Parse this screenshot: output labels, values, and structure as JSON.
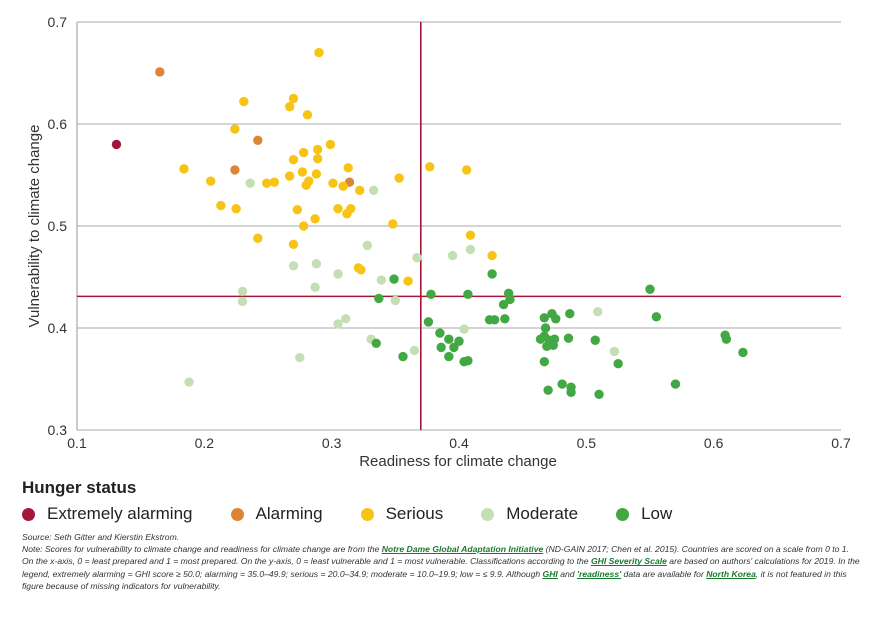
{
  "colors": {
    "extremely_alarming": "#a3183a",
    "alarming": "#dc8534",
    "serious": "#f7c416",
    "moderate": "#c4dfb3",
    "low": "#41a843",
    "reference_line": "#a3183a",
    "grid": "#aaaaaa"
  },
  "chart_data": {
    "type": "scatter",
    "xlabel": "Readiness for climate change",
    "ylabel": "Vulnerability to climate change",
    "xlim": [
      0.1,
      0.7
    ],
    "ylim": [
      0.3,
      0.7
    ],
    "x_ticks": [
      "0.1",
      "0.2",
      "0.3",
      "0.4",
      "0.5",
      "0.6",
      "0.7"
    ],
    "y_ticks": [
      "0.3",
      "0.4",
      "0.5",
      "0.6",
      "0.7"
    ],
    "grid": "horizontal",
    "reference_lines": {
      "x": 0.37,
      "y": 0.431
    },
    "series": [
      {
        "name": "Extremely alarming",
        "color_key": "extremely_alarming",
        "points": [
          [
            0.131,
            0.58
          ]
        ]
      },
      {
        "name": "Alarming",
        "color_key": "alarming",
        "points": [
          [
            0.165,
            0.651
          ],
          [
            0.242,
            0.584
          ],
          [
            0.224,
            0.555
          ],
          [
            0.314,
            0.543
          ]
        ]
      },
      {
        "name": "Serious",
        "color_key": "serious",
        "points": [
          [
            0.29,
            0.67
          ],
          [
            0.231,
            0.622
          ],
          [
            0.27,
            0.625
          ],
          [
            0.267,
            0.617
          ],
          [
            0.281,
            0.609
          ],
          [
            0.224,
            0.595
          ],
          [
            0.289,
            0.575
          ],
          [
            0.299,
            0.58
          ],
          [
            0.278,
            0.572
          ],
          [
            0.289,
            0.566
          ],
          [
            0.27,
            0.565
          ],
          [
            0.184,
            0.556
          ],
          [
            0.313,
            0.557
          ],
          [
            0.301,
            0.542
          ],
          [
            0.277,
            0.553
          ],
          [
            0.267,
            0.549
          ],
          [
            0.288,
            0.551
          ],
          [
            0.282,
            0.544
          ],
          [
            0.309,
            0.539
          ],
          [
            0.205,
            0.544
          ],
          [
            0.249,
            0.542
          ],
          [
            0.255,
            0.543
          ],
          [
            0.28,
            0.54
          ],
          [
            0.322,
            0.535
          ],
          [
            0.353,
            0.547
          ],
          [
            0.377,
            0.558
          ],
          [
            0.406,
            0.555
          ],
          [
            0.213,
            0.52
          ],
          [
            0.225,
            0.517
          ],
          [
            0.273,
            0.516
          ],
          [
            0.305,
            0.517
          ],
          [
            0.312,
            0.512
          ],
          [
            0.315,
            0.517
          ],
          [
            0.287,
            0.507
          ],
          [
            0.278,
            0.5
          ],
          [
            0.348,
            0.502
          ],
          [
            0.242,
            0.488
          ],
          [
            0.27,
            0.482
          ],
          [
            0.409,
            0.491
          ],
          [
            0.426,
            0.471
          ],
          [
            0.321,
            0.459
          ],
          [
            0.323,
            0.457
          ],
          [
            0.36,
            0.446
          ]
        ]
      },
      {
        "name": "Moderate",
        "color_key": "moderate",
        "points": [
          [
            0.236,
            0.542
          ],
          [
            0.333,
            0.535
          ],
          [
            0.328,
            0.481
          ],
          [
            0.409,
            0.477
          ],
          [
            0.395,
            0.471
          ],
          [
            0.367,
            0.469
          ],
          [
            0.27,
            0.461
          ],
          [
            0.288,
            0.463
          ],
          [
            0.305,
            0.453
          ],
          [
            0.339,
            0.447
          ],
          [
            0.287,
            0.44
          ],
          [
            0.23,
            0.436
          ],
          [
            0.23,
            0.426
          ],
          [
            0.35,
            0.427
          ],
          [
            0.311,
            0.409
          ],
          [
            0.305,
            0.404
          ],
          [
            0.404,
            0.399
          ],
          [
            0.331,
            0.389
          ],
          [
            0.365,
            0.378
          ],
          [
            0.275,
            0.371
          ],
          [
            0.188,
            0.347
          ],
          [
            0.509,
            0.416
          ],
          [
            0.522,
            0.377
          ]
        ]
      },
      {
        "name": "Low",
        "color_key": "low",
        "points": [
          [
            0.426,
            0.453
          ],
          [
            0.349,
            0.448
          ],
          [
            0.378,
            0.433
          ],
          [
            0.407,
            0.433
          ],
          [
            0.439,
            0.434
          ],
          [
            0.44,
            0.428
          ],
          [
            0.435,
            0.423
          ],
          [
            0.337,
            0.429
          ],
          [
            0.55,
            0.438
          ],
          [
            0.555,
            0.411
          ],
          [
            0.376,
            0.406
          ],
          [
            0.424,
            0.408
          ],
          [
            0.428,
            0.408
          ],
          [
            0.436,
            0.409
          ],
          [
            0.467,
            0.41
          ],
          [
            0.473,
            0.414
          ],
          [
            0.487,
            0.414
          ],
          [
            0.468,
            0.4
          ],
          [
            0.476,
            0.409
          ],
          [
            0.385,
            0.395
          ],
          [
            0.392,
            0.389
          ],
          [
            0.4,
            0.387
          ],
          [
            0.386,
            0.381
          ],
          [
            0.396,
            0.381
          ],
          [
            0.464,
            0.389
          ],
          [
            0.467,
            0.392
          ],
          [
            0.471,
            0.388
          ],
          [
            0.475,
            0.389
          ],
          [
            0.474,
            0.383
          ],
          [
            0.469,
            0.382
          ],
          [
            0.486,
            0.39
          ],
          [
            0.507,
            0.388
          ],
          [
            0.335,
            0.385
          ],
          [
            0.356,
            0.372
          ],
          [
            0.392,
            0.372
          ],
          [
            0.404,
            0.367
          ],
          [
            0.407,
            0.368
          ],
          [
            0.467,
            0.367
          ],
          [
            0.525,
            0.365
          ],
          [
            0.609,
            0.393
          ],
          [
            0.61,
            0.389
          ],
          [
            0.623,
            0.376
          ],
          [
            0.57,
            0.345
          ],
          [
            0.481,
            0.345
          ],
          [
            0.488,
            0.342
          ],
          [
            0.47,
            0.339
          ],
          [
            0.488,
            0.337
          ],
          [
            0.51,
            0.335
          ]
        ]
      }
    ]
  },
  "legend": {
    "title": "Hunger status",
    "items": [
      {
        "label": "Extremely alarming",
        "color_key": "extremely_alarming"
      },
      {
        "label": "Alarming",
        "color_key": "alarming"
      },
      {
        "label": "Serious",
        "color_key": "serious"
      },
      {
        "label": "Moderate",
        "color_key": "moderate"
      },
      {
        "label": "Low",
        "color_key": "low"
      }
    ]
  },
  "notes": {
    "source": "Source: Seth Gitter and Kierstin Ekstrom.",
    "note_prefix": "Note:",
    "p1": "Scores for vulnerability to climate change and readiness for climate change are from the",
    "link_nd_gain": "Notre Dame Global Adaptation Initiative",
    "p2": "(ND-GAIN 2017; Chen et al. 2015). Countries are scored on a scale from 0 to 1. On the x-axis, 0 = least prepared and 1 = most prepared. On the y-axis, 0 = least vulnerable and 1 = most vulnerable. Classifications according to the",
    "link_severity": "GHI Severity Scale",
    "p3": "are based on authors' calculations for 2019. In the legend, extremely alarming = GHI score ≥ 50.0; alarming = 35.0–49.9; serious = 20.0–34.9; moderate = 10.0–19.9; low = ≤ 9.9. Although",
    "link_ghi": "GHI",
    "p4": "and",
    "link_readiness": "'readiness'",
    "p5": "data are available for",
    "link_north_korea": "North Korea",
    "p6": ", it is not featured in this figure because of missing indicators for vulnerability."
  }
}
